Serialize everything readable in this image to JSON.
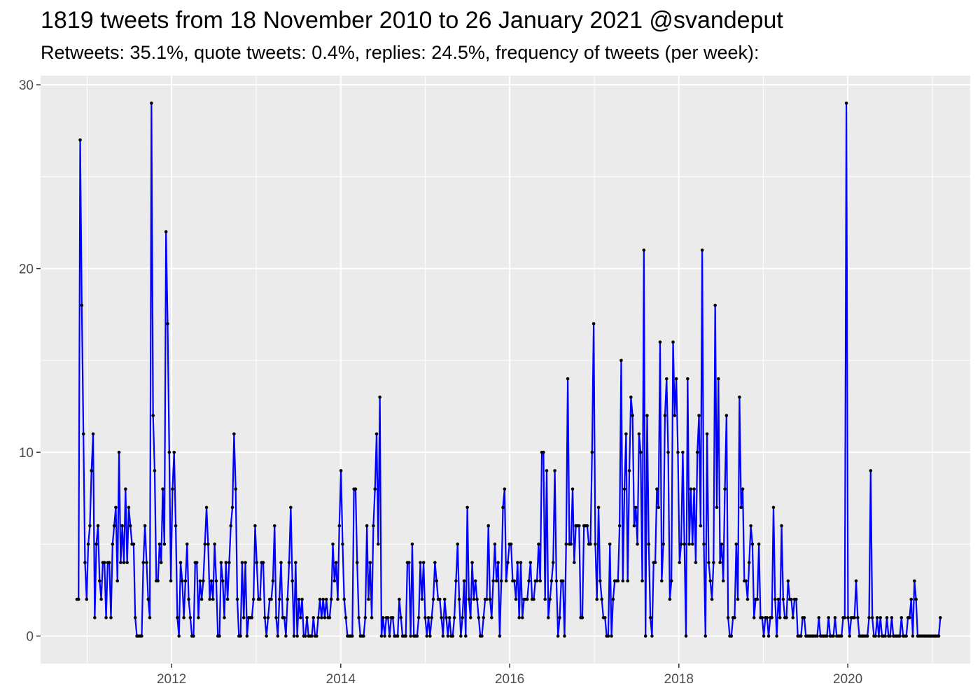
{
  "chart_data": {
    "type": "line",
    "title": "1819 tweets from 18 November 2010 to 26 January 2021 @svandeput",
    "subtitle": "Retweets: 35.1%, quote tweets: 0.4%, replies: 24.5%, frequency of tweets (per week):",
    "xlabel": "",
    "ylabel": "",
    "x_axis": {
      "type": "date",
      "range": [
        "2010-06-14",
        "2021-06-13"
      ],
      "ticks": [
        "2012",
        "2014",
        "2016",
        "2018",
        "2020"
      ]
    },
    "y_axis": {
      "range": [
        -1.5,
        30.5
      ],
      "ticks": [
        0,
        10,
        20,
        30
      ]
    },
    "grid": true,
    "background": "#ebebeb",
    "colors": {
      "line": "#0000ff",
      "points": "#000000"
    },
    "series": [
      {
        "week_start": "2010-11-18",
        "interval_days": 7,
        "values": [
          2,
          2,
          27,
          18,
          11,
          4,
          2,
          5,
          6,
          9,
          11,
          1,
          5,
          6,
          3,
          2,
          4,
          4,
          1,
          4,
          4,
          1,
          5,
          6,
          7,
          3,
          10,
          4,
          6,
          4,
          8,
          4,
          7,
          6,
          5,
          5,
          1,
          0,
          0,
          0,
          0,
          4,
          6,
          4,
          2,
          1,
          29,
          12,
          9,
          3,
          3,
          5,
          4,
          8,
          5,
          22,
          17,
          10,
          3,
          8,
          10,
          6,
          1,
          0,
          4,
          3,
          1,
          3,
          5,
          2,
          1,
          0,
          0,
          4,
          4,
          1,
          3,
          2,
          3,
          5,
          7,
          5,
          2,
          3,
          2,
          5,
          3,
          0,
          0,
          4,
          3,
          1,
          4,
          2,
          4,
          6,
          7,
          11,
          8,
          2,
          0,
          0,
          4,
          1,
          4,
          0,
          1,
          1,
          1,
          2,
          6,
          4,
          2,
          2,
          4,
          4,
          1,
          0,
          1,
          2,
          2,
          3,
          6,
          1,
          0,
          2,
          4,
          1,
          1,
          0,
          2,
          4,
          7,
          3,
          0,
          4,
          0,
          2,
          1,
          2,
          0,
          0,
          1,
          0,
          0,
          0,
          1,
          0,
          0,
          1,
          2,
          1,
          2,
          1,
          2,
          1,
          1,
          2,
          5,
          3,
          4,
          2,
          6,
          9,
          5,
          2,
          1,
          0,
          0,
          0,
          0,
          8,
          8,
          4,
          1,
          0,
          0,
          0,
          1,
          6,
          2,
          4,
          1,
          6,
          8,
          11,
          5,
          13,
          0,
          1,
          0,
          1,
          1,
          0,
          1,
          1,
          0,
          0,
          0,
          2,
          1,
          0,
          0,
          0,
          4,
          4,
          0,
          5,
          0,
          0,
          0,
          1,
          4,
          2,
          4,
          1,
          0,
          1,
          0,
          1,
          2,
          4,
          3,
          2,
          2,
          1,
          0,
          2,
          1,
          0,
          1,
          0,
          0,
          1,
          3,
          5,
          2,
          0,
          1,
          3,
          0,
          7,
          2,
          1,
          4,
          2,
          3,
          2,
          1,
          0,
          0,
          1,
          2,
          2,
          6,
          2,
          1,
          3,
          5,
          3,
          4,
          0,
          3,
          7,
          8,
          3,
          4,
          5,
          5,
          3,
          3,
          2,
          4,
          1,
          4,
          1,
          2,
          2,
          2,
          3,
          4,
          2,
          2,
          3,
          3,
          5,
          3,
          10,
          10,
          2,
          9,
          1,
          2,
          3,
          4,
          9,
          3,
          0,
          1,
          3,
          3,
          0,
          5,
          14,
          5,
          5,
          8,
          4,
          6,
          6,
          6,
          1,
          1,
          6,
          6,
          6,
          5,
          5,
          10,
          17,
          5,
          2,
          7,
          3,
          2,
          1,
          1,
          0,
          0,
          5,
          0,
          2,
          3,
          3,
          3,
          6,
          15,
          3,
          8,
          11,
          3,
          9,
          13,
          12,
          6,
          7,
          5,
          11,
          10,
          3,
          21,
          0,
          12,
          5,
          1,
          0,
          4,
          4,
          8,
          7,
          16,
          3,
          5,
          12,
          14,
          10,
          2,
          3,
          16,
          12,
          14,
          10,
          4,
          5,
          10,
          5,
          0,
          14,
          5,
          8,
          5,
          8,
          4,
          10,
          12,
          6,
          21,
          5,
          0,
          11,
          4,
          3,
          2,
          4,
          18,
          7,
          14,
          4,
          5,
          3,
          8,
          12,
          1,
          0,
          0,
          1,
          1,
          5,
          2,
          13,
          7,
          8,
          3,
          3,
          2,
          4,
          6,
          5,
          1,
          2,
          2,
          5,
          1,
          1,
          0,
          1,
          1,
          0,
          1,
          1,
          7,
          2,
          0,
          2,
          1,
          6,
          2,
          1,
          1,
          3,
          2,
          2,
          1,
          2,
          2,
          0,
          0,
          0,
          1,
          1,
          0,
          0,
          0,
          0,
          0,
          0,
          0,
          0,
          1,
          0,
          0,
          0,
          0,
          0,
          1,
          0,
          0,
          0,
          1,
          0,
          0,
          0,
          0,
          1,
          1,
          29,
          1,
          0,
          1,
          1,
          1,
          3,
          1,
          0,
          0,
          0,
          0,
          0,
          0,
          1,
          9,
          1,
          0,
          0,
          1,
          0,
          1,
          0,
          0,
          0,
          1,
          0,
          0,
          1,
          0,
          0,
          0,
          0,
          0,
          1,
          0,
          0,
          0,
          1,
          1,
          2,
          0,
          3,
          2,
          0,
          0,
          0,
          0,
          0,
          0,
          0,
          0,
          0,
          0,
          0,
          0,
          0,
          0,
          1
        ]
      }
    ]
  }
}
